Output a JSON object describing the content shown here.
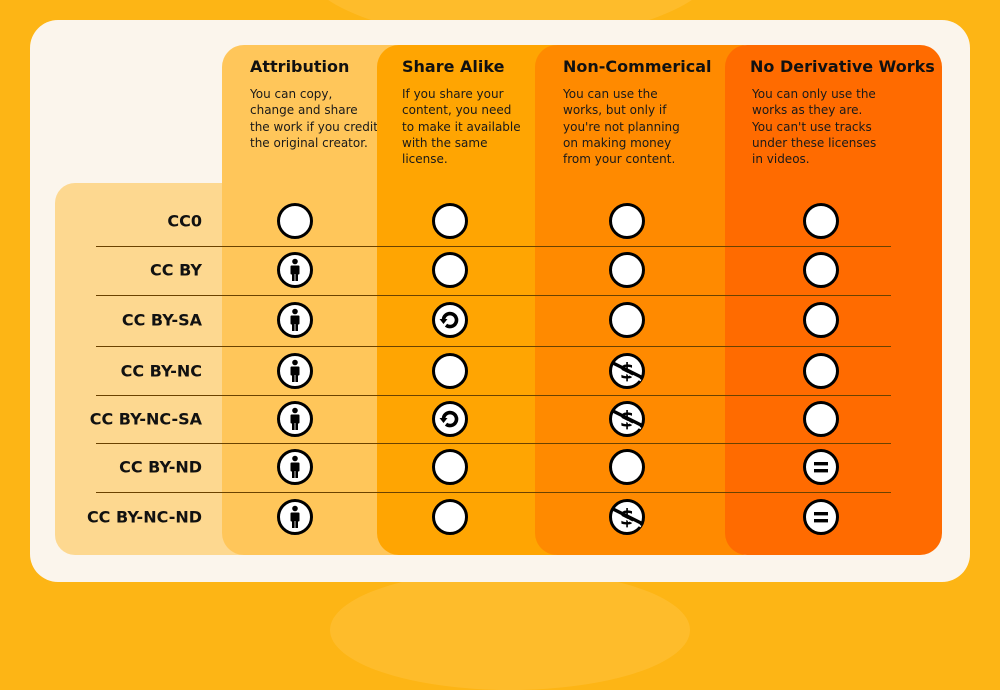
{
  "colors": {
    "background": "#FDB515",
    "card": "#FBF5EC",
    "labels": "#FDD890",
    "attribution": "#FFC65A",
    "share_alike": "#FFA502",
    "non_commercial": "#FF8A00",
    "no_derivative": "#FF6B00"
  },
  "columns": [
    {
      "title": "Attribution",
      "description": "You can copy, change and share the work if you credit the original creator.",
      "icon": "person-icon"
    },
    {
      "title": "Share Alike",
      "description": "If you share your content, you need to make it available with the same license.",
      "icon": "share-alike-icon"
    },
    {
      "title": "Non-Commerical",
      "description": "You can use the works, but only if you're not planning on making money from your content.",
      "icon": "no-dollar-icon"
    },
    {
      "title": "No Derivative Works",
      "description": "You can only use the works as they are. You can't use tracks under these licenses in videos.",
      "icon": "equals-icon"
    }
  ],
  "rows": [
    {
      "label": "CC0",
      "cells": [
        false,
        false,
        false,
        false
      ]
    },
    {
      "label": "CC BY",
      "cells": [
        true,
        false,
        false,
        false
      ]
    },
    {
      "label": "CC BY-SA",
      "cells": [
        true,
        true,
        false,
        false
      ]
    },
    {
      "label": "CC BY-NC",
      "cells": [
        true,
        false,
        true,
        false
      ]
    },
    {
      "label": "CC BY-NC-SA",
      "cells": [
        true,
        true,
        true,
        false
      ]
    },
    {
      "label": "CC BY-ND",
      "cells": [
        true,
        false,
        false,
        true
      ]
    },
    {
      "label": "CC BY-NC-ND",
      "cells": [
        true,
        false,
        true,
        true
      ]
    }
  ]
}
